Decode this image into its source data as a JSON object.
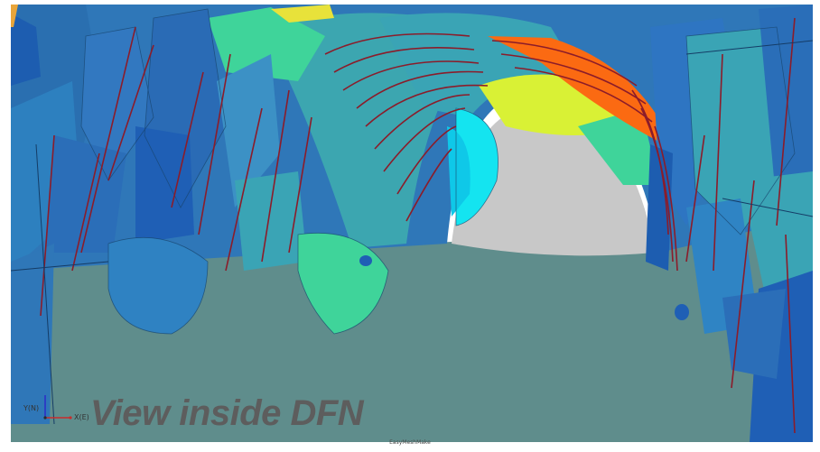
{
  "viewport": {
    "caption": "View inside DFN",
    "footer_label": "EasyMeshMake",
    "axis_labels": {
      "y": "Y(N)",
      "x": "X(E)"
    }
  },
  "colors": {
    "background": "#ffffff",
    "floor": "#5f8d8c",
    "tunnel_end": "#c8c8c8",
    "fracture_blue": "#2f77b8",
    "fracture_teal": "#3ca6b0",
    "fracture_deep": "#1f5fb5",
    "fracture_green": "#3fd49a",
    "fracture_yellow": "#d9f135",
    "fracture_orange": "#fb6a12",
    "fracture_cyan": "#14e4f0",
    "intersection_lines": "#8b1c2a"
  }
}
